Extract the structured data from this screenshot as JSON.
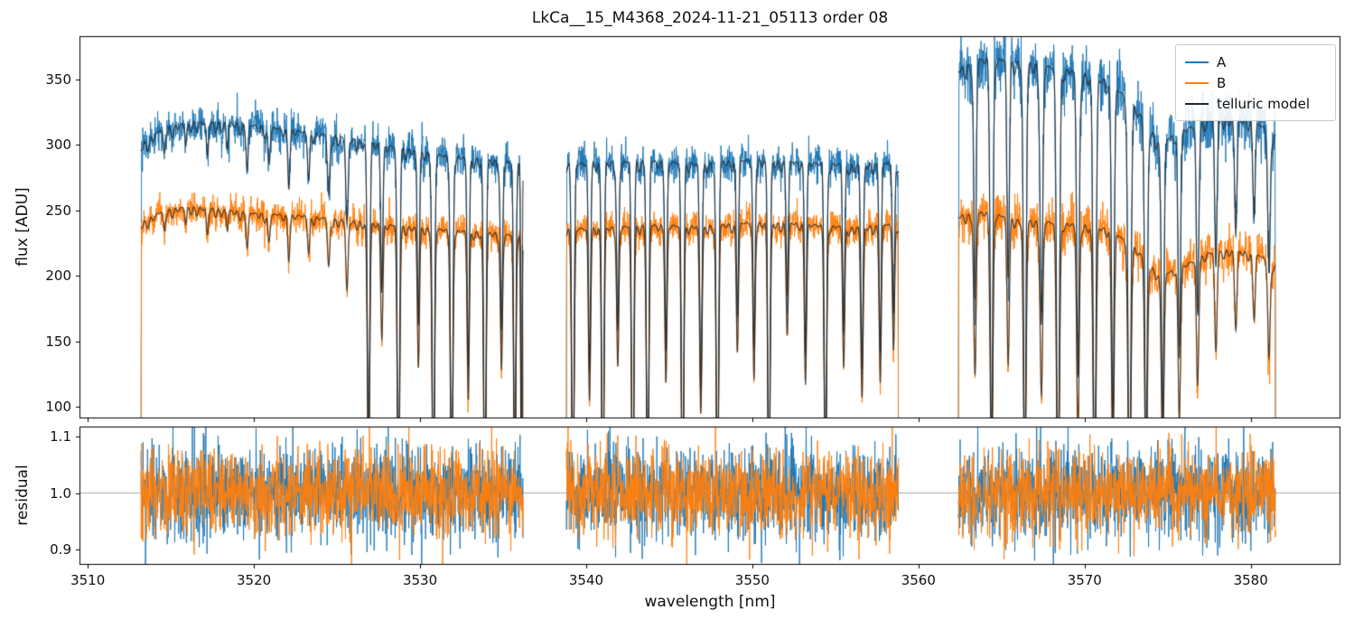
{
  "chart_data": {
    "type": "line",
    "title": "LkCa__15_M4368_2024-11-21_05113  order 08",
    "xlabel": "wavelength [nm]",
    "xlim": [
      3509.5,
      3585.4
    ],
    "xticks": [
      {
        "v": 3510,
        "label": "3510"
      },
      {
        "v": 3520,
        "label": "3520"
      },
      {
        "v": 3530,
        "label": "3530"
      },
      {
        "v": 3540,
        "label": "3540"
      },
      {
        "v": 3550,
        "label": "3550"
      },
      {
        "v": 3560,
        "label": "3560"
      },
      {
        "v": 3570,
        "label": "3570"
      },
      {
        "v": 3580,
        "label": "3580"
      }
    ],
    "panels": [
      {
        "name": "flux",
        "ylabel": "flux [ADU]",
        "ylim": [
          91,
          383
        ],
        "yticks": [
          {
            "v": 100,
            "label": "100"
          },
          {
            "v": 150,
            "label": "150"
          },
          {
            "v": 200,
            "label": "200"
          },
          {
            "v": 250,
            "label": "250"
          },
          {
            "v": 300,
            "label": "300"
          },
          {
            "v": 350,
            "label": "350"
          }
        ],
        "legend_position": "upper right",
        "legend": [
          {
            "label": "A",
            "color": "#1f77b4"
          },
          {
            "label": "B",
            "color": "#ff7f0e"
          },
          {
            "label": "telluric model",
            "color": "#262626"
          }
        ]
      },
      {
        "name": "residual",
        "ylabel": "residual",
        "ylim": [
          0.8728,
          1.1176
        ],
        "yticks": [
          {
            "v": 0.9,
            "label": "0.9"
          },
          {
            "v": 1.0,
            "label": "1.0"
          },
          {
            "v": 1.1,
            "label": "1.1"
          }
        ],
        "hline": 1.0,
        "hline_color": "#aaaaaa"
      }
    ],
    "segments": [
      [
        3513.2,
        3536.2
      ],
      [
        3538.8,
        3558.8
      ],
      [
        3562.4,
        3581.5
      ]
    ],
    "series": {
      "A": {
        "label": "A",
        "color": "#1f77b4",
        "noise_flux": [
          7,
          7,
          12
        ],
        "noise_residual": 0.042,
        "baseline": [
          [
            3513.2,
            300
          ],
          [
            3514.5,
            313
          ],
          [
            3516.5,
            318
          ],
          [
            3519,
            317
          ],
          [
            3522,
            312
          ],
          [
            3525,
            307
          ],
          [
            3528,
            300
          ],
          [
            3531,
            293
          ],
          [
            3534,
            289
          ],
          [
            3536.2,
            286
          ],
          [
            3538.8,
            286
          ],
          [
            3541,
            287
          ],
          [
            3544,
            288
          ],
          [
            3547,
            286
          ],
          [
            3550,
            289
          ],
          [
            3553,
            287
          ],
          [
            3556,
            285
          ],
          [
            3558.8,
            287
          ],
          [
            3562.4,
            358
          ],
          [
            3564,
            367
          ],
          [
            3566,
            364
          ],
          [
            3568,
            360
          ],
          [
            3570,
            355
          ],
          [
            3571.5,
            349
          ],
          [
            3573,
            330
          ],
          [
            3574.5,
            302
          ],
          [
            3576,
            312
          ],
          [
            3578,
            322
          ],
          [
            3580,
            320
          ],
          [
            3581.5,
            308
          ]
        ]
      },
      "B": {
        "label": "B",
        "color": "#ff7f0e",
        "noise_flux": [
          6,
          6,
          9
        ],
        "noise_residual": 0.038,
        "baseline": [
          [
            3513.2,
            240
          ],
          [
            3514.5,
            250
          ],
          [
            3516,
            253
          ],
          [
            3518,
            251
          ],
          [
            3520,
            248
          ],
          [
            3523,
            246
          ],
          [
            3526,
            242
          ],
          [
            3529,
            238
          ],
          [
            3532,
            235
          ],
          [
            3534.5,
            233
          ],
          [
            3536.2,
            230
          ],
          [
            3538.8,
            236
          ],
          [
            3541,
            237
          ],
          [
            3544,
            239
          ],
          [
            3547,
            238
          ],
          [
            3550,
            241
          ],
          [
            3553,
            240
          ],
          [
            3556,
            237
          ],
          [
            3558.8,
            240
          ],
          [
            3562.4,
            246
          ],
          [
            3564,
            249
          ],
          [
            3566,
            243
          ],
          [
            3568,
            241
          ],
          [
            3570,
            239
          ],
          [
            3571.5,
            236
          ],
          [
            3573,
            222
          ],
          [
            3574.5,
            200
          ],
          [
            3576,
            208
          ],
          [
            3577.5,
            218
          ],
          [
            3579,
            220
          ],
          [
            3580.5,
            216
          ],
          [
            3581.5,
            208
          ]
        ]
      },
      "telluric_model": {
        "label": "telluric model",
        "color": "#262626",
        "alpha": 0.8
      }
    },
    "telluric_lines": [
      [
        3514.6,
        0.06,
        0.09
      ],
      [
        3515.9,
        0.05,
        0.08
      ],
      [
        3517.2,
        0.08,
        0.09
      ],
      [
        3518.4,
        0.06,
        0.08
      ],
      [
        3519.6,
        0.1,
        0.09
      ],
      [
        3520.9,
        0.08,
        0.09
      ],
      [
        3522.1,
        0.12,
        0.09
      ],
      [
        3523.3,
        0.1,
        0.09
      ],
      [
        3524.5,
        0.15,
        0.1
      ],
      [
        3525.6,
        0.22,
        0.1
      ],
      [
        3526.9,
        0.82,
        0.1
      ],
      [
        3527.7,
        0.35,
        0.09
      ],
      [
        3528.7,
        0.96,
        0.1
      ],
      [
        3529.9,
        0.45,
        0.09
      ],
      [
        3530.8,
        0.97,
        0.1
      ],
      [
        3531.9,
        0.95,
        0.1
      ],
      [
        3532.9,
        0.55,
        0.09
      ],
      [
        3533.9,
        0.97,
        0.1
      ],
      [
        3534.9,
        0.45,
        0.09
      ],
      [
        3535.7,
        0.93,
        0.09
      ],
      [
        3536.1,
        0.98,
        0.05
      ],
      [
        3539.2,
        0.97,
        0.1
      ],
      [
        3540.2,
        0.55,
        0.09
      ],
      [
        3541.0,
        0.97,
        0.1
      ],
      [
        3541.9,
        0.45,
        0.09
      ],
      [
        3542.8,
        0.97,
        0.1
      ],
      [
        3543.7,
        0.95,
        0.1
      ],
      [
        3544.8,
        0.5,
        0.09
      ],
      [
        3545.8,
        0.97,
        0.1
      ],
      [
        3546.9,
        0.6,
        0.1
      ],
      [
        3547.9,
        0.96,
        0.1
      ],
      [
        3549.1,
        0.4,
        0.09
      ],
      [
        3550.1,
        0.5,
        0.09
      ],
      [
        3551.0,
        0.92,
        0.1
      ],
      [
        3552.1,
        0.35,
        0.09
      ],
      [
        3553.2,
        0.5,
        0.09
      ],
      [
        3554.4,
        0.9,
        0.1
      ],
      [
        3555.5,
        0.45,
        0.09
      ],
      [
        3556.6,
        0.55,
        0.1
      ],
      [
        3557.7,
        0.5,
        0.09
      ],
      [
        3558.5,
        0.4,
        0.09
      ],
      [
        3563.4,
        0.5,
        0.1
      ],
      [
        3564.4,
        0.85,
        0.11
      ],
      [
        3565.4,
        0.45,
        0.1
      ],
      [
        3566.4,
        0.9,
        0.11
      ],
      [
        3567.4,
        0.55,
        0.11
      ],
      [
        3568.4,
        0.95,
        0.12
      ],
      [
        3569.6,
        0.65,
        0.11
      ],
      [
        3570.6,
        0.95,
        0.12
      ],
      [
        3571.7,
        0.75,
        0.11
      ],
      [
        3572.7,
        0.95,
        0.12
      ],
      [
        3573.7,
        0.85,
        0.11
      ],
      [
        3574.7,
        0.7,
        0.11
      ],
      [
        3575.7,
        0.55,
        0.1
      ],
      [
        3576.8,
        0.45,
        0.1
      ],
      [
        3577.9,
        0.35,
        0.1
      ],
      [
        3579.1,
        0.28,
        0.1
      ],
      [
        3580.2,
        0.22,
        0.1
      ],
      [
        3581.1,
        0.35,
        0.1
      ]
    ],
    "model_ripple": {
      "amp": 0.03,
      "p1": 0.37,
      "p2": 1.41
    },
    "sample_step_nm": 0.018,
    "seed": 42
  }
}
